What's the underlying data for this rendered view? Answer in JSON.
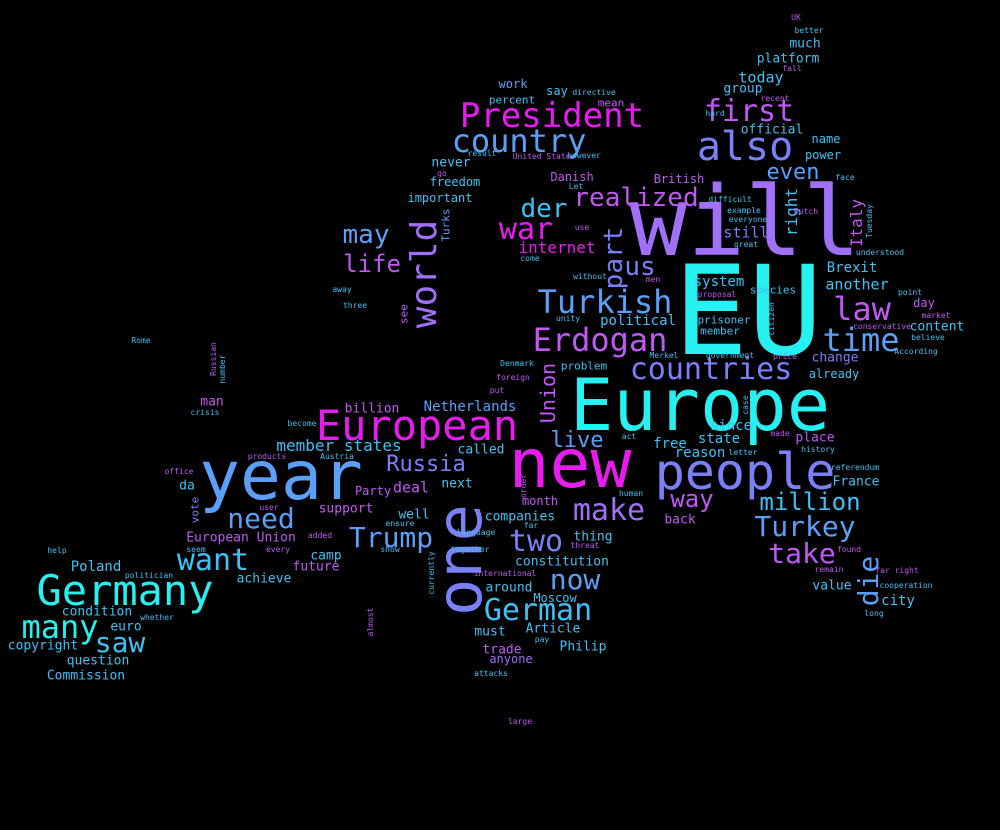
{
  "palette": {
    "background": "#000000",
    "cyan": "#26f0f0",
    "sky": "#3ec2f5",
    "blue": "#5aa0f8",
    "periwinkle": "#7a80f8",
    "violet": "#a070f8",
    "purple": "#c058f4",
    "magenta": "#e81cf0"
  },
  "words": [
    {
      "text": "EU",
      "color": "cyan",
      "weight": 1.0
    },
    {
      "text": "will",
      "color": "violet",
      "weight": 0.95
    },
    {
      "text": "Europe",
      "color": "cyan",
      "weight": 0.75
    },
    {
      "text": "new",
      "color": "magenta",
      "weight": 0.72
    },
    {
      "text": "year",
      "color": "blue",
      "weight": 0.72
    },
    {
      "text": "one",
      "color": "periwinkle",
      "weight": 0.72
    },
    {
      "text": "people",
      "color": "periwinkle",
      "weight": 0.55
    },
    {
      "text": "European",
      "color": "magenta",
      "weight": 0.46
    },
    {
      "text": "Germany",
      "color": "cyan",
      "weight": 0.46
    },
    {
      "text": "also",
      "color": "periwinkle",
      "weight": 0.44
    },
    {
      "text": "world",
      "color": "violet",
      "weight": 0.4
    },
    {
      "text": "President",
      "color": "magenta",
      "weight": 0.38
    },
    {
      "text": "country",
      "color": "blue",
      "weight": 0.35
    },
    {
      "text": "Turkish",
      "color": "blue",
      "weight": 0.35
    },
    {
      "text": "Erdogan",
      "color": "purple",
      "weight": 0.35
    },
    {
      "text": "countries",
      "color": "periwinkle",
      "weight": 0.33
    },
    {
      "text": "first",
      "color": "purple",
      "weight": 0.33
    },
    {
      "text": "law",
      "color": "purple",
      "weight": 0.36
    },
    {
      "text": "time",
      "color": "blue",
      "weight": 0.36
    },
    {
      "text": "war",
      "color": "magenta",
      "weight": 0.32
    },
    {
      "text": "many",
      "color": "cyan",
      "weight": 0.36
    },
    {
      "text": "German",
      "color": "sky",
      "weight": 0.33
    },
    {
      "text": "want",
      "color": "sky",
      "weight": 0.33
    },
    {
      "text": "make",
      "color": "violet",
      "weight": 0.33
    },
    {
      "text": "two",
      "color": "periwinkle",
      "weight": 0.33
    },
    {
      "text": "Trump",
      "color": "blue",
      "weight": 0.32
    },
    {
      "text": "need",
      "color": "blue",
      "weight": 0.32
    },
    {
      "text": "Turkey",
      "color": "blue",
      "weight": 0.32
    },
    {
      "text": "realized",
      "color": "purple",
      "weight": 0.28
    },
    {
      "text": "saw",
      "color": "sky",
      "weight": 0.3
    },
    {
      "text": "now",
      "color": "blue",
      "weight": 0.3
    },
    {
      "text": "take",
      "color": "purple",
      "weight": 0.3
    },
    {
      "text": "die",
      "color": "blue",
      "weight": 0.3
    },
    {
      "text": "der",
      "color": "sky",
      "weight": 0.28
    },
    {
      "text": "may",
      "color": "blue",
      "weight": 0.28
    },
    {
      "text": "us",
      "color": "periwinkle",
      "weight": 0.28
    },
    {
      "text": "life",
      "color": "purple",
      "weight": 0.26
    },
    {
      "text": "part",
      "color": "periwinkle",
      "weight": 0.26
    },
    {
      "text": "million",
      "color": "sky",
      "weight": 0.26
    },
    {
      "text": "Russia",
      "color": "periwinkle",
      "weight": 0.24
    },
    {
      "text": "live",
      "color": "blue",
      "weight": 0.24
    },
    {
      "text": "way",
      "color": "purple",
      "weight": 0.26
    },
    {
      "text": "even",
      "color": "blue",
      "weight": 0.24
    },
    {
      "text": "Union",
      "color": "purple",
      "weight": 0.2
    },
    {
      "text": "right",
      "color": "sky",
      "weight": 0.18
    },
    {
      "text": "Italy",
      "color": "purple",
      "weight": 0.16
    },
    {
      "text": "internet",
      "color": "magenta",
      "weight": 0.18
    },
    {
      "text": "member states",
      "color": "sky",
      "weight": 0.18
    },
    {
      "text": "Poland",
      "color": "sky",
      "weight": 0.16
    },
    {
      "text": "still",
      "color": "periwinkle",
      "weight": 0.16
    },
    {
      "text": "today",
      "color": "sky",
      "weight": 0.16
    },
    {
      "text": "Netherlands",
      "color": "blue",
      "weight": 0.14
    },
    {
      "text": "billion",
      "color": "purple",
      "weight": 0.14
    },
    {
      "text": "deal",
      "color": "purple",
      "weight": 0.16
    },
    {
      "text": "called",
      "color": "sky",
      "weight": 0.14
    },
    {
      "text": "free",
      "color": "sky",
      "weight": 0.15
    },
    {
      "text": "since",
      "color": "sky",
      "weight": 0.15
    },
    {
      "text": "Brexit",
      "color": "sky",
      "weight": 0.14
    },
    {
      "text": "another",
      "color": "sky",
      "weight": 0.15
    },
    {
      "text": "system",
      "color": "sky",
      "weight": 0.14
    },
    {
      "text": "political",
      "color": "sky",
      "weight": 0.14
    },
    {
      "text": "state",
      "color": "sky",
      "weight": 0.14
    },
    {
      "text": "reason",
      "color": "sky",
      "weight": 0.14
    },
    {
      "text": "place",
      "color": "purple",
      "weight": 0.14
    },
    {
      "text": "change",
      "color": "periwinkle",
      "weight": 0.14
    },
    {
      "text": "already",
      "color": "sky",
      "weight": 0.13
    },
    {
      "text": "content",
      "color": "sky",
      "weight": 0.13
    },
    {
      "text": "day",
      "color": "purple",
      "weight": 0.13
    },
    {
      "text": "France",
      "color": "sky",
      "weight": 0.13
    },
    {
      "text": "city",
      "color": "sky",
      "weight": 0.14
    },
    {
      "text": "value",
      "color": "sky",
      "weight": 0.13
    },
    {
      "text": "Moscow",
      "color": "sky",
      "weight": 0.13
    },
    {
      "text": "Article",
      "color": "sky",
      "weight": 0.13
    },
    {
      "text": "around",
      "color": "sky",
      "weight": 0.13
    },
    {
      "text": "Philip",
      "color": "sky",
      "weight": 0.13
    },
    {
      "text": "trade",
      "color": "purple",
      "weight": 0.13
    },
    {
      "text": "anyone",
      "color": "violet",
      "weight": 0.12
    },
    {
      "text": "must",
      "color": "sky",
      "weight": 0.13
    },
    {
      "text": "constitution",
      "color": "sky",
      "weight": 0.13
    },
    {
      "text": "thing",
      "color": "sky",
      "weight": 0.13
    },
    {
      "text": "companies",
      "color": "sky",
      "weight": 0.13
    },
    {
      "text": "month",
      "color": "purple",
      "weight": 0.12
    },
    {
      "text": "well",
      "color": "sky",
      "weight": 0.13
    },
    {
      "text": "next",
      "color": "sky",
      "weight": 0.13
    },
    {
      "text": "support",
      "color": "purple",
      "weight": 0.13
    },
    {
      "text": "Party",
      "color": "purple",
      "weight": 0.12
    },
    {
      "text": "camp",
      "color": "sky",
      "weight": 0.14
    },
    {
      "text": "European Union",
      "color": "purple",
      "weight": 0.13
    },
    {
      "text": "future",
      "color": "purple",
      "weight": 0.13
    },
    {
      "text": "achieve",
      "color": "sky",
      "weight": 0.13
    },
    {
      "text": "condition",
      "color": "sky",
      "weight": 0.13
    },
    {
      "text": "euro",
      "color": "sky",
      "weight": 0.13
    },
    {
      "text": "question",
      "color": "sky",
      "weight": 0.13
    },
    {
      "text": "copyright",
      "color": "sky",
      "weight": 0.13
    },
    {
      "text": "Commission",
      "color": "sky",
      "weight": 0.13
    },
    {
      "text": "man",
      "color": "purple",
      "weight": 0.13
    },
    {
      "text": "da",
      "color": "sky",
      "weight": 0.13
    },
    {
      "text": "vote",
      "color": "periwinkle",
      "weight": 0.11
    },
    {
      "text": "back",
      "color": "purple",
      "weight": 0.13
    },
    {
      "text": "platform",
      "color": "sky",
      "weight": 0.13
    },
    {
      "text": "much",
      "color": "sky",
      "weight": 0.13
    },
    {
      "text": "group",
      "color": "sky",
      "weight": 0.13
    },
    {
      "text": "official",
      "color": "sky",
      "weight": 0.13
    },
    {
      "text": "name",
      "color": "sky",
      "weight": 0.12
    },
    {
      "text": "power",
      "color": "sky",
      "weight": 0.12
    },
    {
      "text": "British",
      "color": "purple",
      "weight": 0.12
    },
    {
      "text": "Danish",
      "color": "purple",
      "weight": 0.12
    },
    {
      "text": "freedom",
      "color": "sky",
      "weight": 0.12
    },
    {
      "text": "important",
      "color": "sky",
      "weight": 0.12
    },
    {
      "text": "never",
      "color": "sky",
      "weight": 0.13
    },
    {
      "text": "work",
      "color": "blue",
      "weight": 0.12
    },
    {
      "text": "say",
      "color": "sky",
      "weight": 0.12
    },
    {
      "text": "percent",
      "color": "sky",
      "weight": 0.11
    },
    {
      "text": "mean",
      "color": "purple",
      "weight": 0.11
    },
    {
      "text": "Turks",
      "color": "blue",
      "weight": 0.11
    },
    {
      "text": "see",
      "color": "purple",
      "weight": 0.11
    },
    {
      "text": "prisoner",
      "color": "sky",
      "weight": 0.11
    },
    {
      "text": "member",
      "color": "sky",
      "weight": 0.11
    },
    {
      "text": "problem",
      "color": "sky",
      "weight": 0.11
    },
    {
      "text": "species",
      "color": "sky",
      "weight": 0.11
    },
    {
      "text": "UK",
      "color": "purple",
      "weight": 0.11
    },
    {
      "text": "better",
      "color": "sky",
      "weight": 0.06
    },
    {
      "text": "fall",
      "color": "purple",
      "weight": 0.06
    },
    {
      "text": "directive",
      "color": "sky",
      "weight": 0.06
    },
    {
      "text": "recent",
      "color": "purple",
      "weight": 0.06
    },
    {
      "text": "hard",
      "color": "sky",
      "weight": 0.06
    },
    {
      "text": "result",
      "color": "sky",
      "weight": 0.06
    },
    {
      "text": "United States",
      "color": "purple",
      "weight": 0.06
    },
    {
      "text": "however",
      "color": "sky",
      "weight": 0.06
    },
    {
      "text": "go",
      "color": "purple",
      "weight": 0.06
    },
    {
      "text": "Let",
      "color": "sky",
      "weight": 0.06
    },
    {
      "text": "difficult",
      "color": "sky",
      "weight": 0.06
    },
    {
      "text": "everyone",
      "color": "sky",
      "weight": 0.06
    },
    {
      "text": "face",
      "color": "sky",
      "weight": 0.06
    },
    {
      "text": "example",
      "color": "sky",
      "weight": 0.06
    },
    {
      "text": "Dutch",
      "color": "purple",
      "weight": 0.06
    },
    {
      "text": "use",
      "color": "purple",
      "weight": 0.06
    },
    {
      "text": "great",
      "color": "sky",
      "weight": 0.06
    },
    {
      "text": "Tuesday",
      "color": "sky",
      "weight": 0.06
    },
    {
      "text": "understood",
      "color": "sky",
      "weight": 0.06
    },
    {
      "text": "come",
      "color": "sky",
      "weight": 0.06
    },
    {
      "text": "without",
      "color": "sky",
      "weight": 0.06
    },
    {
      "text": "men",
      "color": "purple",
      "weight": 0.06
    },
    {
      "text": "proposal",
      "color": "purple",
      "weight": 0.06
    },
    {
      "text": "citizen",
      "color": "sky",
      "weight": 0.06
    },
    {
      "text": "away",
      "color": "sky",
      "weight": 0.06
    },
    {
      "text": "three",
      "color": "sky",
      "weight": 0.06
    },
    {
      "text": "point",
      "color": "sky",
      "weight": 0.06
    },
    {
      "text": "market",
      "color": "purple",
      "weight": 0.06
    },
    {
      "text": "conservative",
      "color": "purple",
      "weight": 0.06
    },
    {
      "text": "believe",
      "color": "sky",
      "weight": 0.06
    },
    {
      "text": "unity",
      "color": "sky",
      "weight": 0.06
    },
    {
      "text": "According",
      "color": "sky",
      "weight": 0.06
    },
    {
      "text": "Rome",
      "color": "sky",
      "weight": 0.06
    },
    {
      "text": "Russian",
      "color": "purple",
      "weight": 0.06
    },
    {
      "text": "number",
      "color": "sky",
      "weight": 0.06
    },
    {
      "text": "Merkel",
      "color": "sky",
      "weight": 0.06
    },
    {
      "text": "government",
      "color": "sky",
      "weight": 0.06
    },
    {
      "text": "price",
      "color": "purple",
      "weight": 0.06
    },
    {
      "text": "Denmark",
      "color": "sky",
      "weight": 0.06
    },
    {
      "text": "foreign",
      "color": "purple",
      "weight": 0.06
    },
    {
      "text": "put",
      "color": "purple",
      "weight": 0.06
    },
    {
      "text": "case",
      "color": "sky",
      "weight": 0.06
    },
    {
      "text": "crisis",
      "color": "sky",
      "weight": 0.06
    },
    {
      "text": "become",
      "color": "sky",
      "weight": 0.06
    },
    {
      "text": "made",
      "color": "purple",
      "weight": 0.06
    },
    {
      "text": "act",
      "color": "sky",
      "weight": 0.06
    },
    {
      "text": "letter",
      "color": "sky",
      "weight": 0.06
    },
    {
      "text": "history",
      "color": "sky",
      "weight": 0.06
    },
    {
      "text": "products",
      "color": "purple",
      "weight": 0.06
    },
    {
      "text": "Austria",
      "color": "sky",
      "weight": 0.06
    },
    {
      "text": "referendum",
      "color": "sky",
      "weight": 0.06
    },
    {
      "text": "office",
      "color": "purple",
      "weight": 0.06
    },
    {
      "text": "order",
      "color": "purple",
      "weight": 0.06
    },
    {
      "text": "far",
      "color": "sky",
      "weight": 0.06
    },
    {
      "text": "human",
      "color": "sky",
      "weight": 0.06
    },
    {
      "text": "user",
      "color": "purple",
      "weight": 0.06
    },
    {
      "text": "ensure",
      "color": "sky",
      "weight": 0.06
    },
    {
      "text": "language",
      "color": "sky",
      "weight": 0.06
    },
    {
      "text": "threat",
      "color": "purple",
      "weight": 0.06
    },
    {
      "text": "found",
      "color": "purple",
      "weight": 0.06
    },
    {
      "text": "seem",
      "color": "sky",
      "weight": 0.06
    },
    {
      "text": "added",
      "color": "purple",
      "weight": 0.06
    },
    {
      "text": "show",
      "color": "sky",
      "weight": 0.06
    },
    {
      "text": "together",
      "color": "sky",
      "weight": 0.06
    },
    {
      "text": "help",
      "color": "sky",
      "weight": 0.06
    },
    {
      "text": "every",
      "color": "purple",
      "weight": 0.06
    },
    {
      "text": "far right",
      "color": "purple",
      "weight": 0.06
    },
    {
      "text": "remain",
      "color": "purple",
      "weight": 0.06
    },
    {
      "text": "politician",
      "color": "sky",
      "weight": 0.06
    },
    {
      "text": "international",
      "color": "purple",
      "weight": 0.06
    },
    {
      "text": "cooperation",
      "color": "sky",
      "weight": 0.06
    },
    {
      "text": "currently",
      "color": "sky",
      "weight": 0.06
    },
    {
      "text": "whether",
      "color": "sky",
      "weight": 0.06
    },
    {
      "text": "almost",
      "color": "purple",
      "weight": 0.06
    },
    {
      "text": "pay",
      "color": "sky",
      "weight": 0.06
    },
    {
      "text": "long",
      "color": "sky",
      "weight": 0.06
    },
    {
      "text": "attacks",
      "color": "sky",
      "weight": 0.06
    },
    {
      "text": "large",
      "color": "purple",
      "weight": 0.06
    },
    {
      "text": "past",
      "color": "purple",
      "weight": 0.06
    }
  ]
}
